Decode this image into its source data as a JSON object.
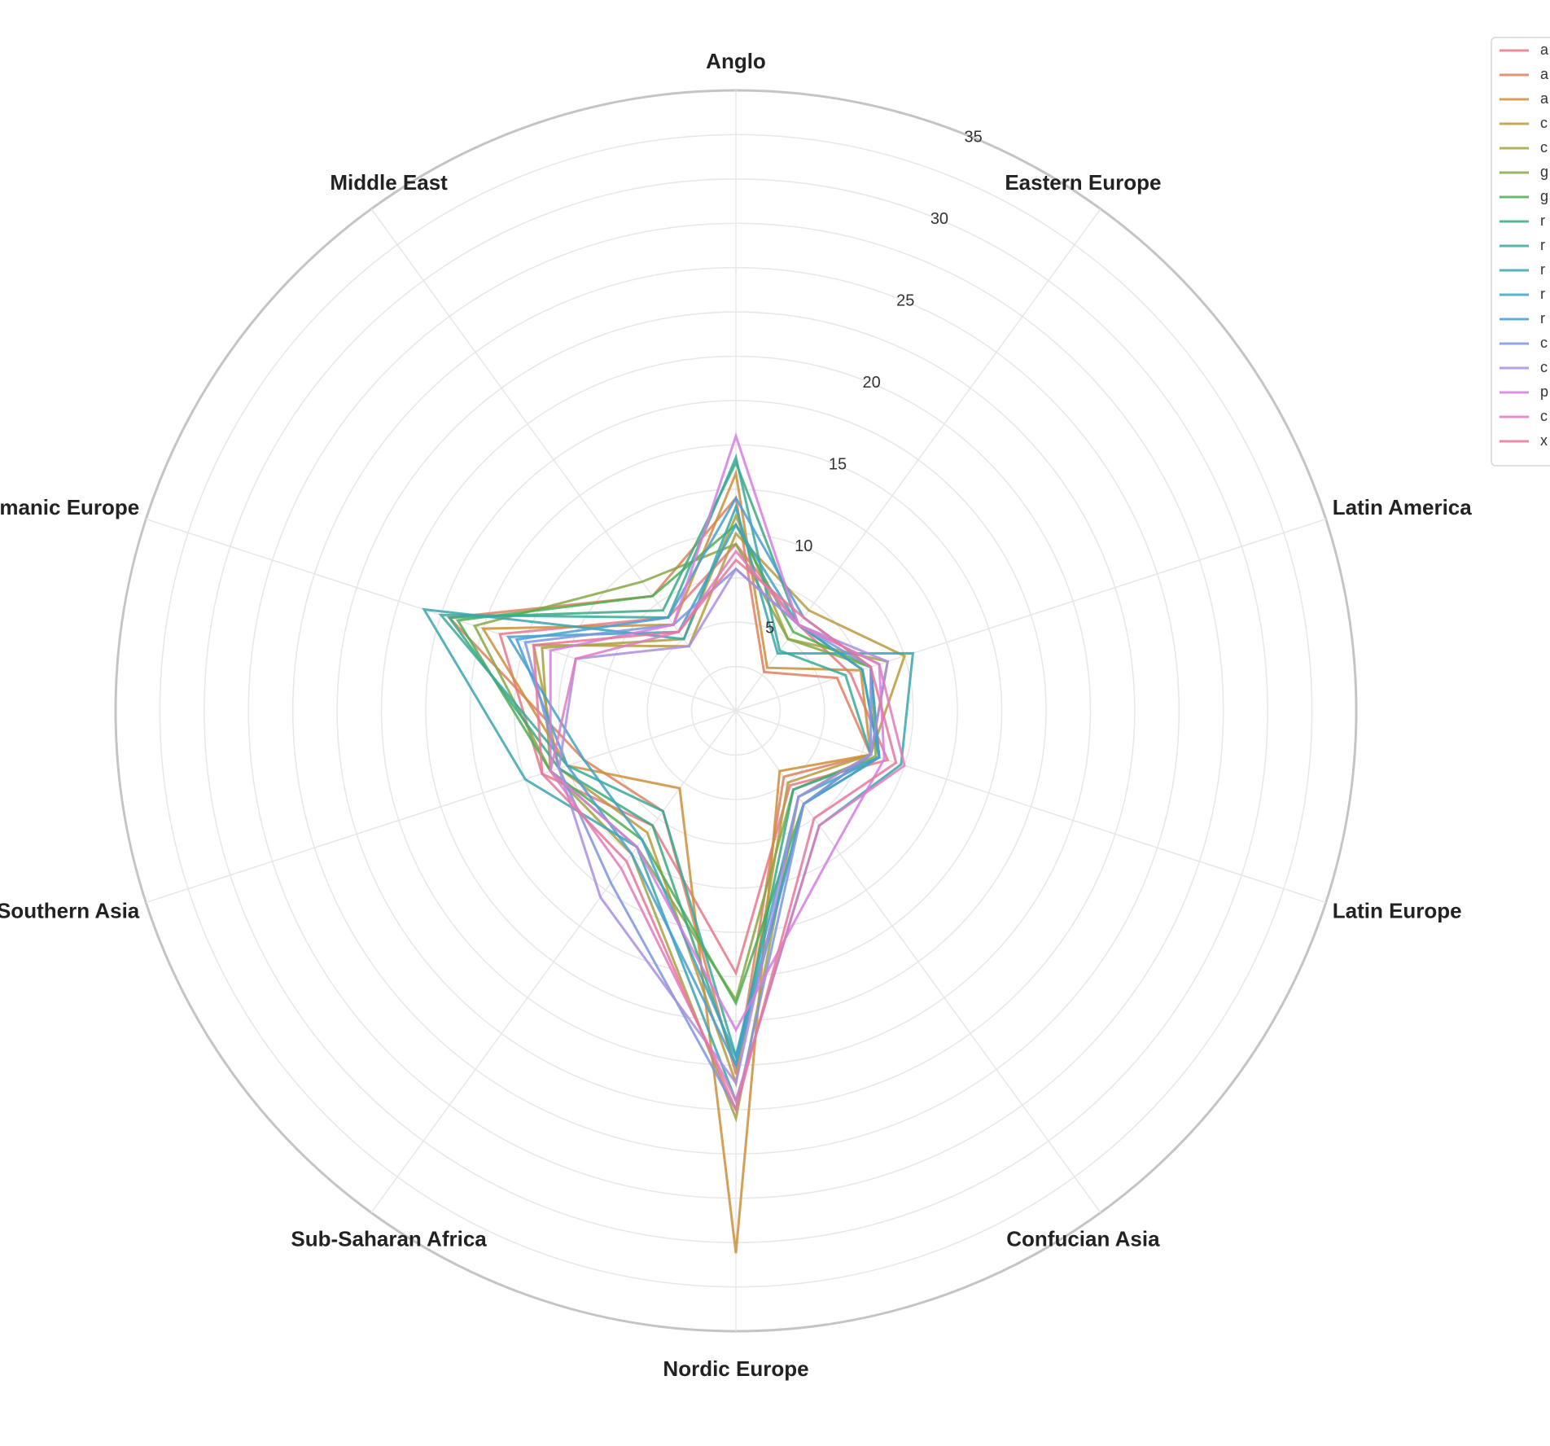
{
  "chart_data": {
    "type": "radar",
    "axes": [
      "Anglo",
      "Eastern Europe",
      "Latin America",
      "Latin Europe",
      "Confucian Asia",
      "Nordic Europe",
      "Sub-Saharan Africa",
      "Southern Asia",
      "Germanic Europe",
      "Middle East"
    ],
    "r_ticks": [
      5,
      10,
      15,
      20,
      25,
      30,
      35
    ],
    "r_max": 35,
    "grid": true,
    "legend_position": "top-right",
    "series": [
      {
        "name": "a",
        "color": "#e8788a",
        "values": [
          9.4,
          6.0,
          6.8,
          9.0,
          5.2,
          14.8,
          8.0,
          11.5,
          14.0,
          6.5
        ]
      },
      {
        "name": "a",
        "color": "#e1805f",
        "values": [
          12.0,
          2.7,
          6.0,
          8.0,
          4.6,
          20.5,
          7.0,
          9.0,
          17.0,
          8.0
        ]
      },
      {
        "name": "a",
        "color": "#cd8f3b",
        "values": [
          13.4,
          3.0,
          7.4,
          8.0,
          4.2,
          30.6,
          5.4,
          10.0,
          15.0,
          6.0
        ]
      },
      {
        "name": "c",
        "color": "#b99a3d",
        "values": [
          10.0,
          7.0,
          10.0,
          8.0,
          5.0,
          21.0,
          8.5,
          10.5,
          12.0,
          4.5
        ]
      },
      {
        "name": "c",
        "color": "#a5a23e",
        "values": [
          11.0,
          5.0,
          9.0,
          8.0,
          6.0,
          23.0,
          10.0,
          11.0,
          11.5,
          5.0
        ]
      },
      {
        "name": "g",
        "color": "#86a846",
        "values": [
          9.4,
          5.0,
          8.0,
          8.3,
          5.5,
          16.3,
          9.5,
          11.0,
          15.5,
          9.0
        ]
      },
      {
        "name": "g",
        "color": "#4fae52",
        "values": [
          10.5,
          5.5,
          8.0,
          8.5,
          6.5,
          16.5,
          9.0,
          11.0,
          16.5,
          8.0
        ]
      },
      {
        "name": "r",
        "color": "#3ba980",
        "values": [
          14.0,
          6.0,
          7.5,
          8.5,
          5.5,
          20.0,
          8.0,
          10.5,
          17.0,
          7.0
        ]
      },
      {
        "name": "r",
        "color": "#38a99a",
        "values": [
          14.3,
          4.2,
          6.5,
          8.0,
          6.5,
          19.5,
          7.0,
          10.0,
          17.5,
          6.5
        ]
      },
      {
        "name": "r",
        "color": "#3aa6ae",
        "values": [
          11.5,
          4.0,
          10.5,
          9.8,
          8.0,
          22.0,
          9.5,
          12.5,
          18.5,
          5.0
        ]
      },
      {
        "name": "r",
        "color": "#3ea3c6",
        "values": [
          10.5,
          6.0,
          7.5,
          8.5,
          6.0,
          19.5,
          9.0,
          9.0,
          13.5,
          5.5
        ]
      },
      {
        "name": "r",
        "color": "#4a9dd7",
        "values": [
          12.0,
          6.5,
          8.0,
          8.5,
          6.5,
          20.0,
          10.0,
          10.0,
          13.0,
          6.5
        ]
      },
      {
        "name": "c",
        "color": "#7e95e0",
        "values": [
          8.0,
          6.0,
          8.0,
          8.0,
          6.5,
          22.5,
          12.0,
          10.5,
          12.5,
          6.0
        ]
      },
      {
        "name": "c",
        "color": "#a98ee0",
        "values": [
          8.0,
          6.0,
          9.0,
          8.0,
          6.0,
          21.0,
          13.0,
          10.5,
          9.5,
          4.5
        ]
      },
      {
        "name": "p",
        "color": "#d57ee0",
        "values": [
          15.5,
          6.0,
          8.5,
          8.8,
          9.5,
          18.0,
          9.5,
          11.0,
          11.0,
          6.0
        ]
      },
      {
        "name": "c",
        "color": "#e07bbf",
        "values": [
          9.0,
          6.0,
          8.5,
          10.0,
          8.0,
          22.0,
          11.0,
          11.0,
          9.5,
          5.5
        ]
      },
      {
        "name": "x",
        "color": "#e8779a",
        "values": [
          8.5,
          6.5,
          8.0,
          9.5,
          7.5,
          22.5,
          10.5,
          11.5,
          12.0,
          5.5
        ]
      }
    ]
  }
}
